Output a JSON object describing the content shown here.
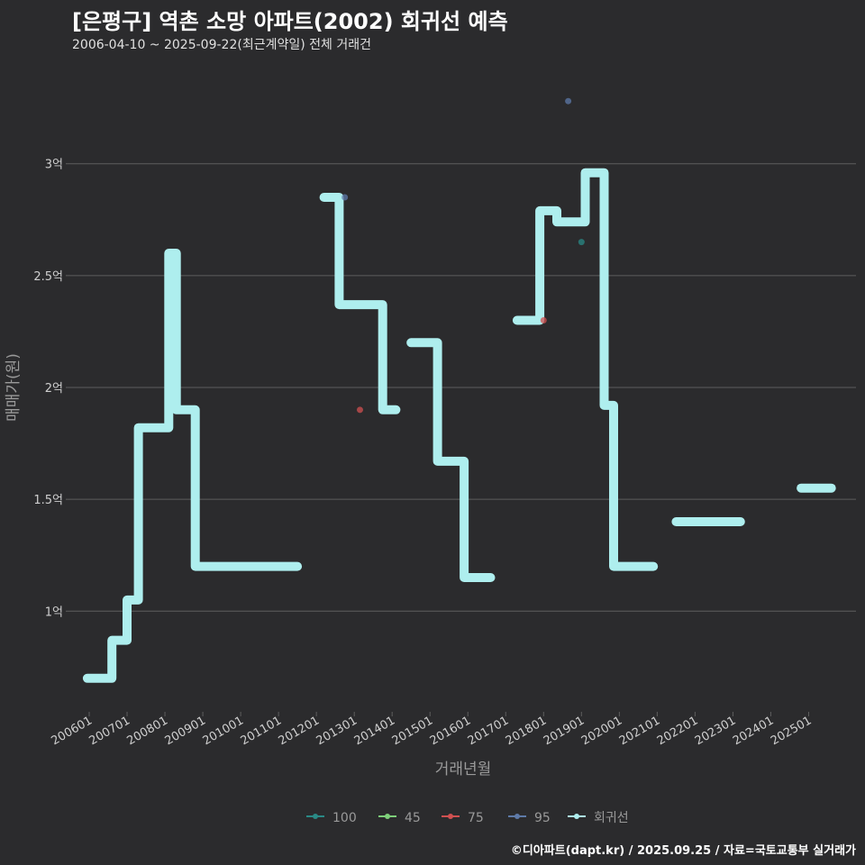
{
  "chart_data": {
    "type": "line",
    "title": "[은평구] 역촌 소망 아파트(2002) 회귀선 예측",
    "subtitle": "2006-04-10 ~ 2025-09-22(최근계약일) 전체 거래건",
    "xlabel": "거래년월",
    "ylabel": "매매가(원)",
    "caption": "©디아파트(dapt.kr) / 2025.09.25 / 자료=국토교통부 실거래가",
    "ylim": [
      0.55,
      3.45
    ],
    "y_ticks": [
      {
        "value": 1.0,
        "label": "1억"
      },
      {
        "value": 1.5,
        "label": "1.5억"
      },
      {
        "value": 2.0,
        "label": "2억"
      },
      {
        "value": 2.5,
        "label": "2.5억"
      },
      {
        "value": 3.0,
        "label": "3억"
      }
    ],
    "x_range": [
      2005.5,
      2026.25
    ],
    "x_ticks": [
      {
        "value": 2006.0,
        "label": "200601"
      },
      {
        "value": 2007.0,
        "label": "200701"
      },
      {
        "value": 2008.0,
        "label": "200801"
      },
      {
        "value": 2009.0,
        "label": "200901"
      },
      {
        "value": 2010.0,
        "label": "201001"
      },
      {
        "value": 2011.0,
        "label": "201101"
      },
      {
        "value": 2012.0,
        "label": "201201"
      },
      {
        "value": 2013.0,
        "label": "201301"
      },
      {
        "value": 2014.0,
        "label": "201401"
      },
      {
        "value": 2015.0,
        "label": "201501"
      },
      {
        "value": 2016.0,
        "label": "201601"
      },
      {
        "value": 2017.0,
        "label": "201701"
      },
      {
        "value": 2018.0,
        "label": "201801"
      },
      {
        "value": 2019.0,
        "label": "201901"
      },
      {
        "value": 2020.0,
        "label": "202001"
      },
      {
        "value": 2021.0,
        "label": "202101"
      },
      {
        "value": 2022.0,
        "label": "202201"
      },
      {
        "value": 2023.0,
        "label": "202301"
      },
      {
        "value": 2024.0,
        "label": "202401"
      },
      {
        "value": 2025.0,
        "label": "202501"
      }
    ],
    "regression_segments": [
      [
        [
          2005.95,
          0.7
        ],
        [
          2006.6,
          0.7
        ],
        [
          2006.6,
          0.87
        ],
        [
          2007.0,
          0.87
        ],
        [
          2007.0,
          1.05
        ],
        [
          2007.3,
          1.05
        ],
        [
          2007.3,
          1.82
        ],
        [
          2008.1,
          1.82
        ],
        [
          2008.1,
          2.6
        ],
        [
          2008.3,
          2.6
        ],
        [
          2008.3,
          1.9
        ],
        [
          2008.8,
          1.9
        ],
        [
          2008.8,
          1.2
        ],
        [
          2011.5,
          1.2
        ]
      ],
      [
        [
          2012.2,
          2.85
        ],
        [
          2012.6,
          2.85
        ],
        [
          2012.6,
          2.37
        ],
        [
          2013.75,
          2.37
        ],
        [
          2013.75,
          1.9
        ],
        [
          2014.1,
          1.9
        ]
      ],
      [
        [
          2014.5,
          2.2
        ],
        [
          2015.2,
          2.2
        ],
        [
          2015.2,
          1.67
        ],
        [
          2015.9,
          1.67
        ],
        [
          2015.9,
          1.15
        ],
        [
          2016.6,
          1.15
        ]
      ],
      [
        [
          2017.3,
          2.3
        ],
        [
          2017.9,
          2.3
        ],
        [
          2017.9,
          2.79
        ],
        [
          2018.35,
          2.79
        ],
        [
          2018.35,
          2.74
        ],
        [
          2019.1,
          2.74
        ],
        [
          2019.1,
          2.96
        ],
        [
          2019.6,
          2.96
        ],
        [
          2019.6,
          1.92
        ],
        [
          2019.85,
          1.92
        ],
        [
          2019.85,
          1.2
        ],
        [
          2020.9,
          1.2
        ]
      ],
      [
        [
          2021.5,
          1.4
        ],
        [
          2023.2,
          1.4
        ]
      ],
      [
        [
          2024.8,
          1.55
        ],
        [
          2025.6,
          1.55
        ]
      ]
    ],
    "points": [
      {
        "series": "95",
        "x": 2012.75,
        "y": 2.85
      },
      {
        "series": "75",
        "x": 2013.15,
        "y": 1.9
      },
      {
        "series": "75",
        "x": 2018.0,
        "y": 2.3
      },
      {
        "series": "95",
        "x": 2018.65,
        "y": 3.28
      },
      {
        "series": "100",
        "x": 2019.0,
        "y": 2.65
      }
    ],
    "legend": [
      {
        "label": "100",
        "color": "#2a8a86"
      },
      {
        "label": "45",
        "color": "#7ed07a"
      },
      {
        "label": "75",
        "color": "#d05050"
      },
      {
        "label": "95",
        "color": "#5e7aa8"
      },
      {
        "label": "회귀선",
        "color": "#aeeeee"
      }
    ],
    "colors": {
      "regression": "#aeeeee",
      "grid": "#5e5e5e",
      "background": "#2b2b2d"
    }
  }
}
